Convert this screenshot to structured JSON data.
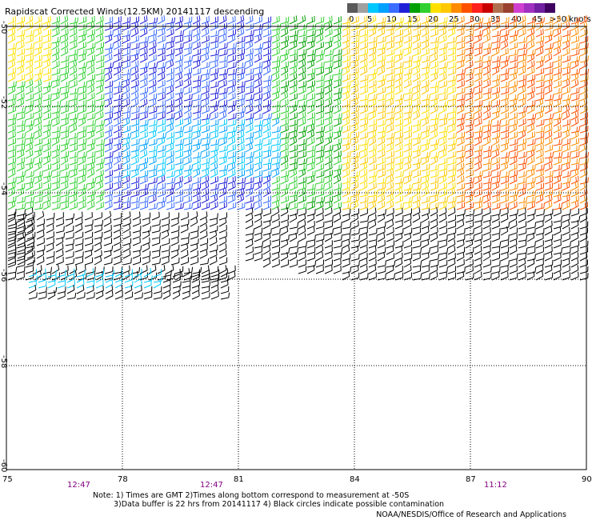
{
  "title": "Rapidscat Corrected Winds(12.5KM) 20141117 descending",
  "legend": {
    "colors": [
      "#5a5a5a",
      "#a0a0a0",
      "#00c8ff",
      "#00a0ff",
      "#3a6cff",
      "#2020d8",
      "#00a000",
      "#30d030",
      "#ffe000",
      "#ffc800",
      "#ff8c00",
      "#ff5000",
      "#ff2020",
      "#c80000",
      "#b07050",
      "#9a4030",
      "#d040d0",
      "#a030c0",
      "#7020a0",
      "#400060"
    ],
    "labels": [
      "0",
      "5",
      "10",
      "15",
      "20",
      "25",
      "30",
      "35",
      "40",
      "45",
      ">50 knots"
    ]
  },
  "axes": {
    "x_ticks": [
      "75",
      "78",
      "81",
      "84",
      "87",
      "90"
    ],
    "y_ticks": [
      "-52",
      "-54",
      "-56",
      "-58",
      "-60"
    ],
    "y_top_partial": "-50"
  },
  "time_labels": [
    {
      "text": "12:47",
      "lon": 76.8
    },
    {
      "text": "12:47",
      "lon": 80.4
    },
    {
      "text": "11:12",
      "lon": 87.5
    }
  ],
  "notes": {
    "line1": "Note: 1) Times are GMT 2)Times along bottom correspond to measurement at -50S",
    "line2": "3)Data buffer is 22 hrs from 20141117 4) Black circles indicate possible contamination"
  },
  "credit": "NOAA/NESDIS/Office of Research and Applications"
}
